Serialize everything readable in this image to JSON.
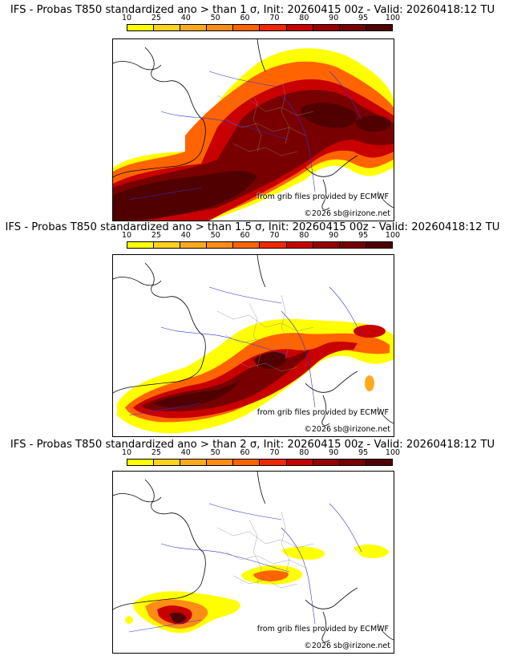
{
  "legend": {
    "ticks": [
      "10",
      "25",
      "40",
      "50",
      "60",
      "70",
      "80",
      "90",
      "95",
      "100"
    ],
    "colors": [
      "#ffff00",
      "#ffd21e",
      "#ffaa1e",
      "#ff8c14",
      "#ff6400",
      "#f02800",
      "#c80000",
      "#960000",
      "#780000",
      "#500000"
    ]
  },
  "panels": [
    {
      "title": "IFS - Probas T850  standardized ano > than 1 σ, Init: 20260415 00z - Valid: 20260418:12 TU",
      "credit": "from grib files provided by ECMWF",
      "copyright": "©2026 sb@irizone.net"
    },
    {
      "title": "IFS - Probas T850  standardized ano > than 1.5 σ, Init: 20260415 00z - Valid: 20260418:12 TU",
      "credit": "from grib files provided by ECMWF",
      "copyright": "©2026 sb@irizone.net"
    },
    {
      "title": "IFS - Probas T850  standardized ano > than 2 σ, Init: 20260415 00z - Valid: 20260418:12 TU",
      "credit": "from grib files provided by ECMWF",
      "copyright": "©2026 sb@irizone.net"
    }
  ]
}
